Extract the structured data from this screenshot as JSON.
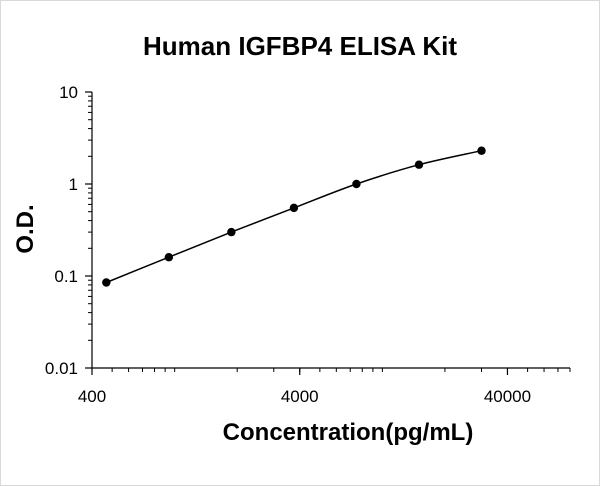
{
  "chart_data": {
    "type": "scatter",
    "title": "Human IGFBP4 ELISA Kit",
    "xlabel": "Concentration(pg/mL)",
    "ylabel": "O.D.",
    "x_scale": "log",
    "y_scale": "log",
    "xlim": [
      400,
      80000
    ],
    "ylim": [
      0.01,
      10
    ],
    "x_ticks": [
      {
        "value": 400,
        "label": "400"
      },
      {
        "value": 4000,
        "label": "4000"
      },
      {
        "value": 40000,
        "label": "40000"
      }
    ],
    "y_ticks": [
      {
        "value": 0.01,
        "label": "0.01"
      },
      {
        "value": 0.1,
        "label": "0.1"
      },
      {
        "value": 1,
        "label": "1"
      },
      {
        "value": 10,
        "label": "10"
      }
    ],
    "grid": false,
    "legend": "none",
    "series": [
      {
        "x": [
          468.75,
          937.5,
          1875,
          3750,
          7500,
          15000,
          30000
        ],
        "y": [
          0.085,
          0.16,
          0.3,
          0.55,
          1.0,
          1.62,
          2.3
        ]
      }
    ],
    "colors": {
      "marker": "#000000",
      "line": "#000000",
      "axis": "#000000"
    }
  }
}
